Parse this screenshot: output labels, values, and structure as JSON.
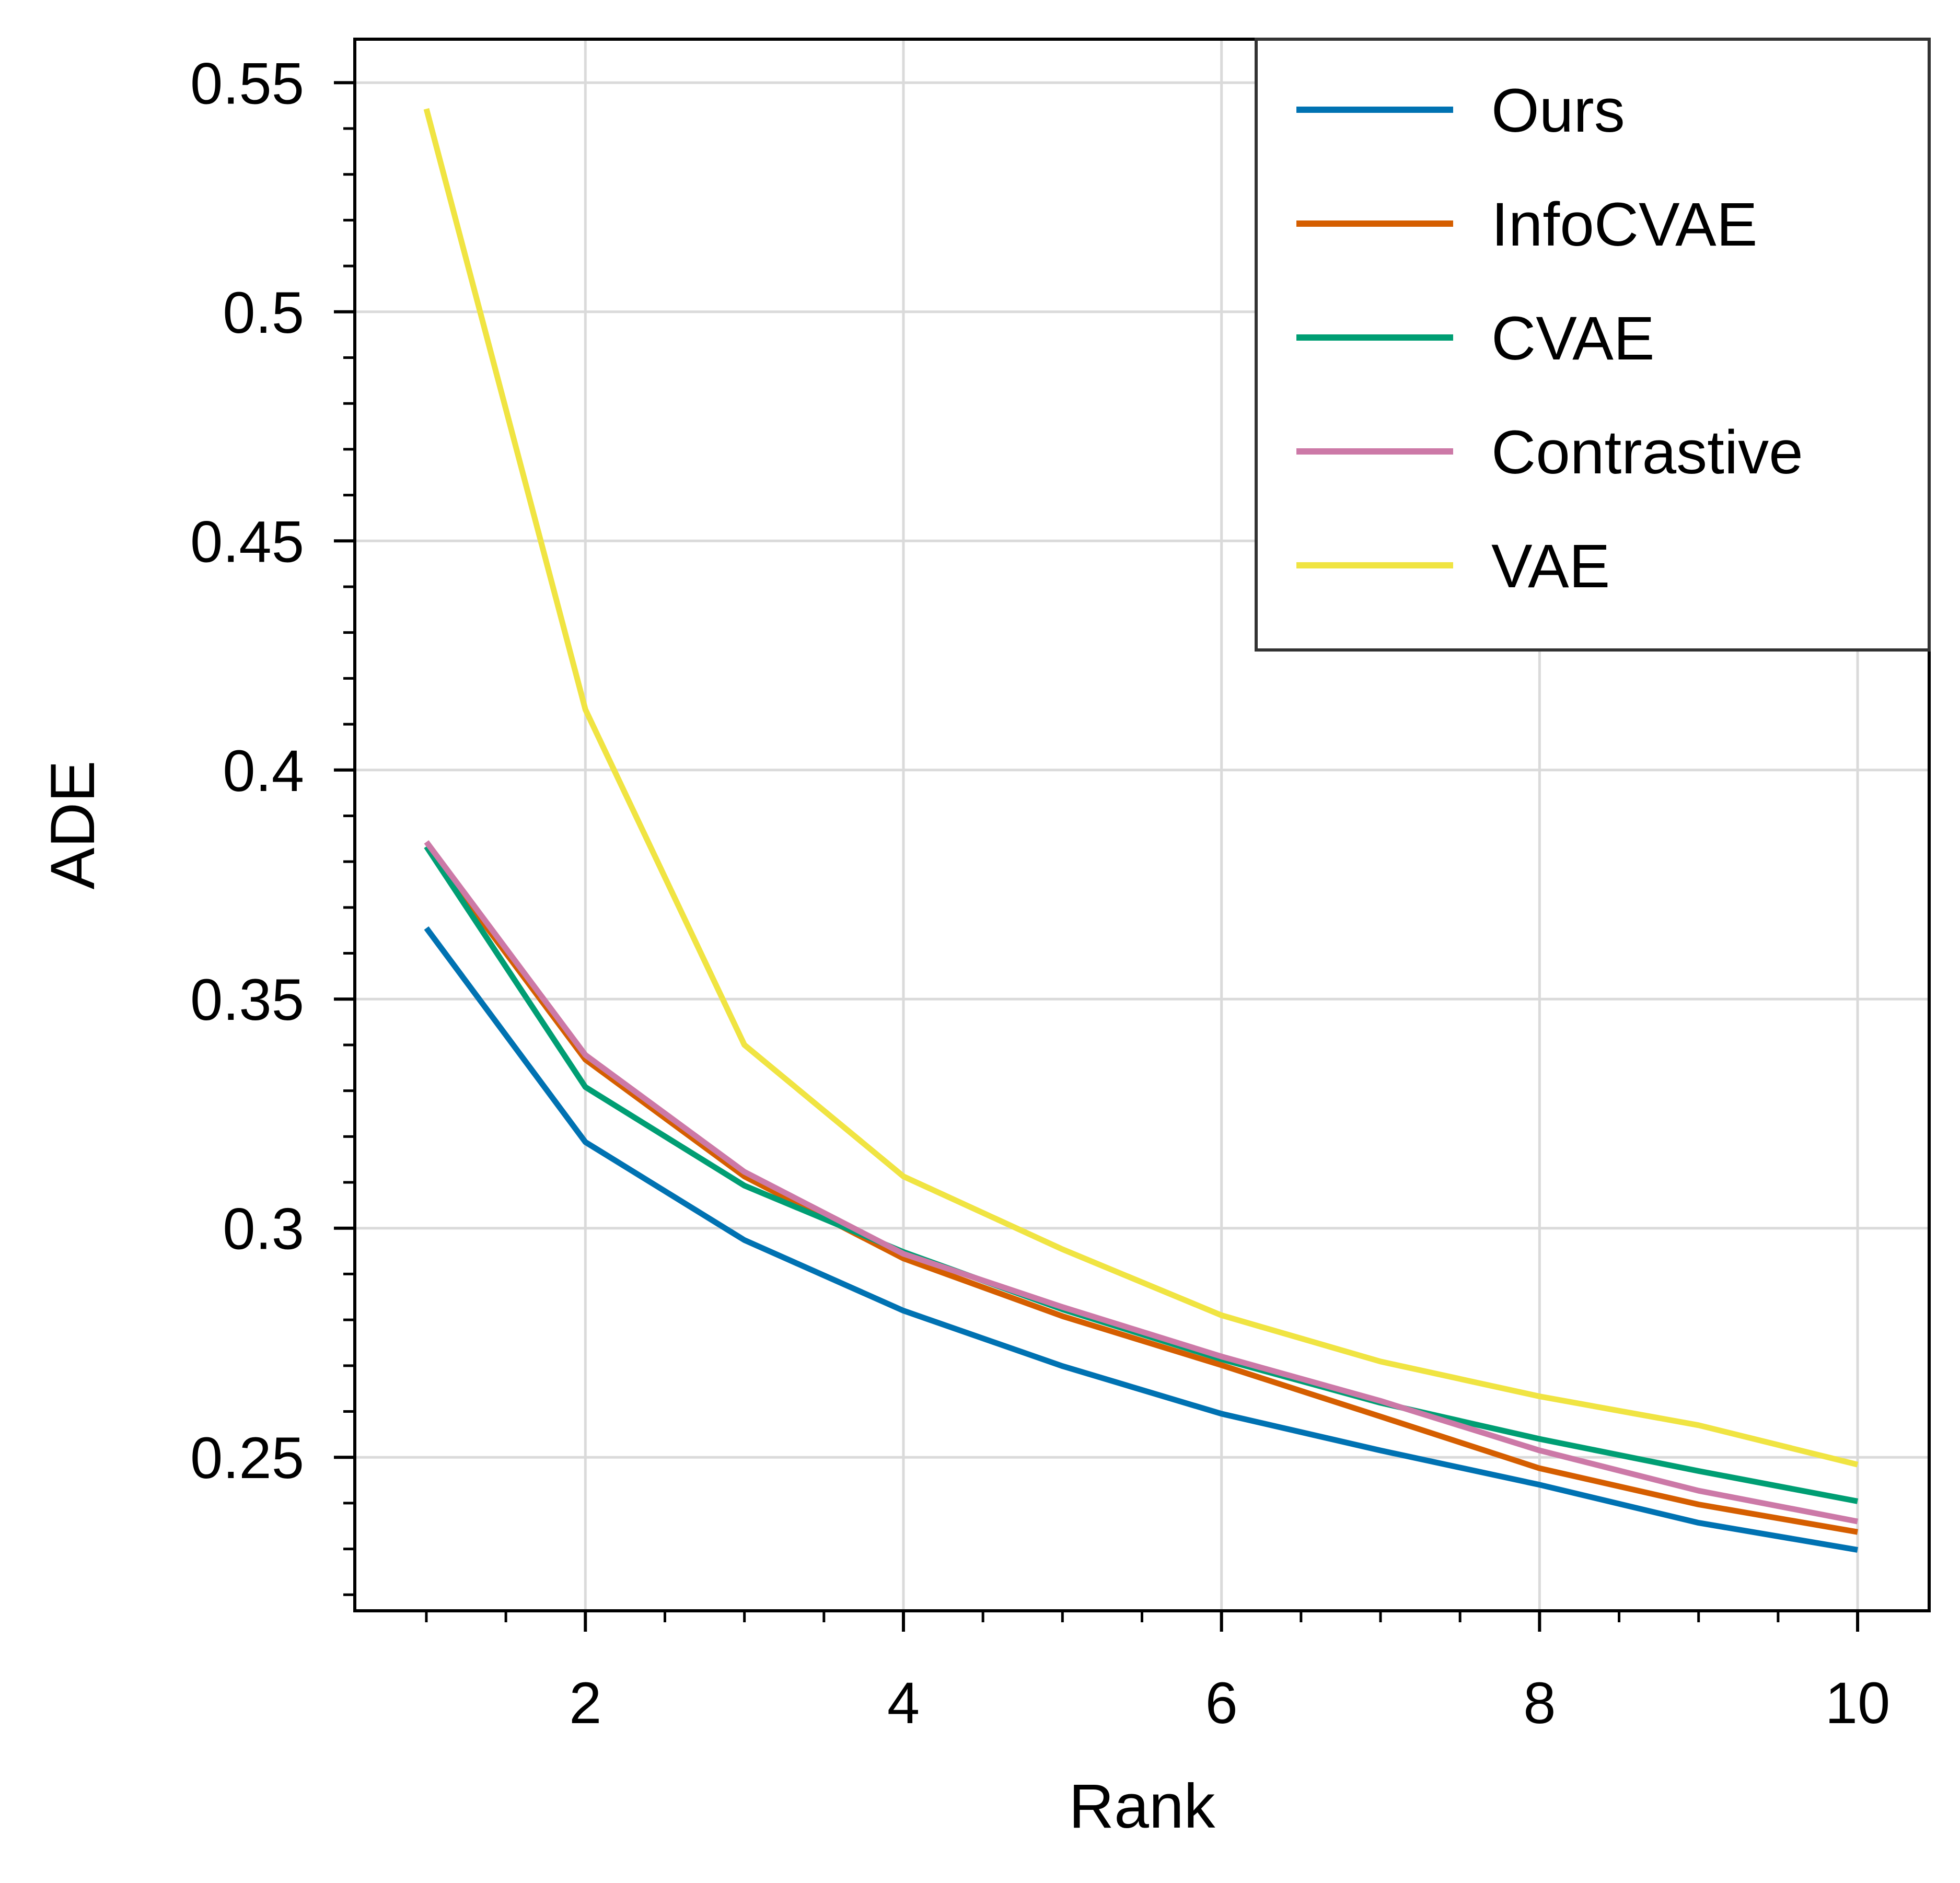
{
  "chart_data": {
    "type": "line",
    "title": "",
    "xlabel": "Rank",
    "ylabel": "ADE",
    "xlim": [
      0.55,
      10.45
    ],
    "ylim": [
      0.2165,
      0.5595
    ],
    "xticks": [
      2,
      4,
      6,
      8,
      10
    ],
    "xtick_labels": [
      "2",
      "4",
      "6",
      "8",
      "10"
    ],
    "x_minor_ticks": [
      1,
      1.5,
      2.5,
      3,
      3.5,
      4.5,
      5,
      5.5,
      6.5,
      7,
      7.5,
      8.5,
      9,
      9.5
    ],
    "yticks": [
      0.25,
      0.3,
      0.35,
      0.4,
      0.45,
      0.5,
      0.55
    ],
    "ytick_labels": [
      "0.25",
      "0.3",
      "0.35",
      "0.4",
      "0.45",
      "0.5",
      "0.55"
    ],
    "grid": true,
    "legend_position": "top-right",
    "x": [
      1,
      2,
      3,
      4,
      5,
      6,
      7,
      8,
      9,
      10
    ],
    "series": [
      {
        "name": "Ours",
        "color": "#0072B2",
        "values": [
          0.3655,
          0.3188,
          0.2974,
          0.282,
          0.2699,
          0.2595,
          0.2515,
          0.244,
          0.2357,
          0.2298
        ]
      },
      {
        "name": "InfoCVAE",
        "color": "#D55E00",
        "values": [
          0.3833,
          0.3368,
          0.3113,
          0.2934,
          0.2808,
          0.2701,
          0.2589,
          0.2476,
          0.2397,
          0.2337
        ]
      },
      {
        "name": "CVAE",
        "color": "#009E73",
        "values": [
          0.3833,
          0.3308,
          0.3093,
          0.2948,
          0.2823,
          0.2714,
          0.2619,
          0.254,
          0.247,
          0.2404
        ]
      },
      {
        "name": "Contrastive",
        "color": "#CC79A7",
        "values": [
          0.3843,
          0.3378,
          0.3123,
          0.2944,
          0.2828,
          0.272,
          0.2623,
          0.2515,
          0.2427,
          0.236
        ]
      },
      {
        "name": "VAE",
        "color": "#F0E442",
        "values": [
          0.5443,
          0.4132,
          0.34,
          0.3113,
          0.2954,
          0.281,
          0.2709,
          0.2633,
          0.257,
          0.2484
        ]
      }
    ]
  }
}
